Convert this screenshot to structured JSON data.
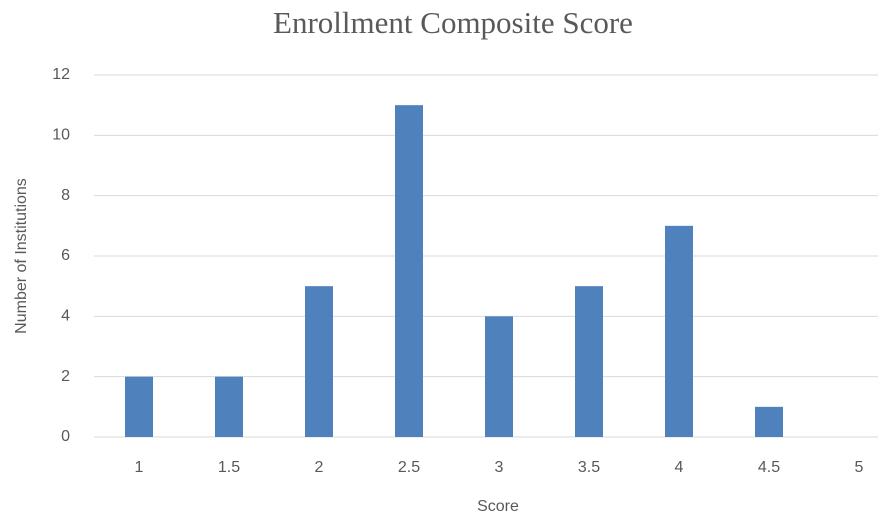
{
  "chart_data": {
    "type": "bar",
    "title": "Enrollment Composite Score",
    "x_label": "Score",
    "y_label": "Number of Institutions",
    "categories": [
      "1",
      "1.5",
      "2",
      "2.5",
      "3",
      "3.5",
      "4",
      "4.5",
      "5"
    ],
    "values": [
      2,
      2,
      5,
      11,
      4,
      5,
      7,
      1,
      0
    ],
    "color": "#4f81bd",
    "ylim": [
      0,
      12
    ],
    "yticks": [
      0,
      2,
      4,
      6,
      8,
      10,
      12
    ],
    "grid": true
  }
}
